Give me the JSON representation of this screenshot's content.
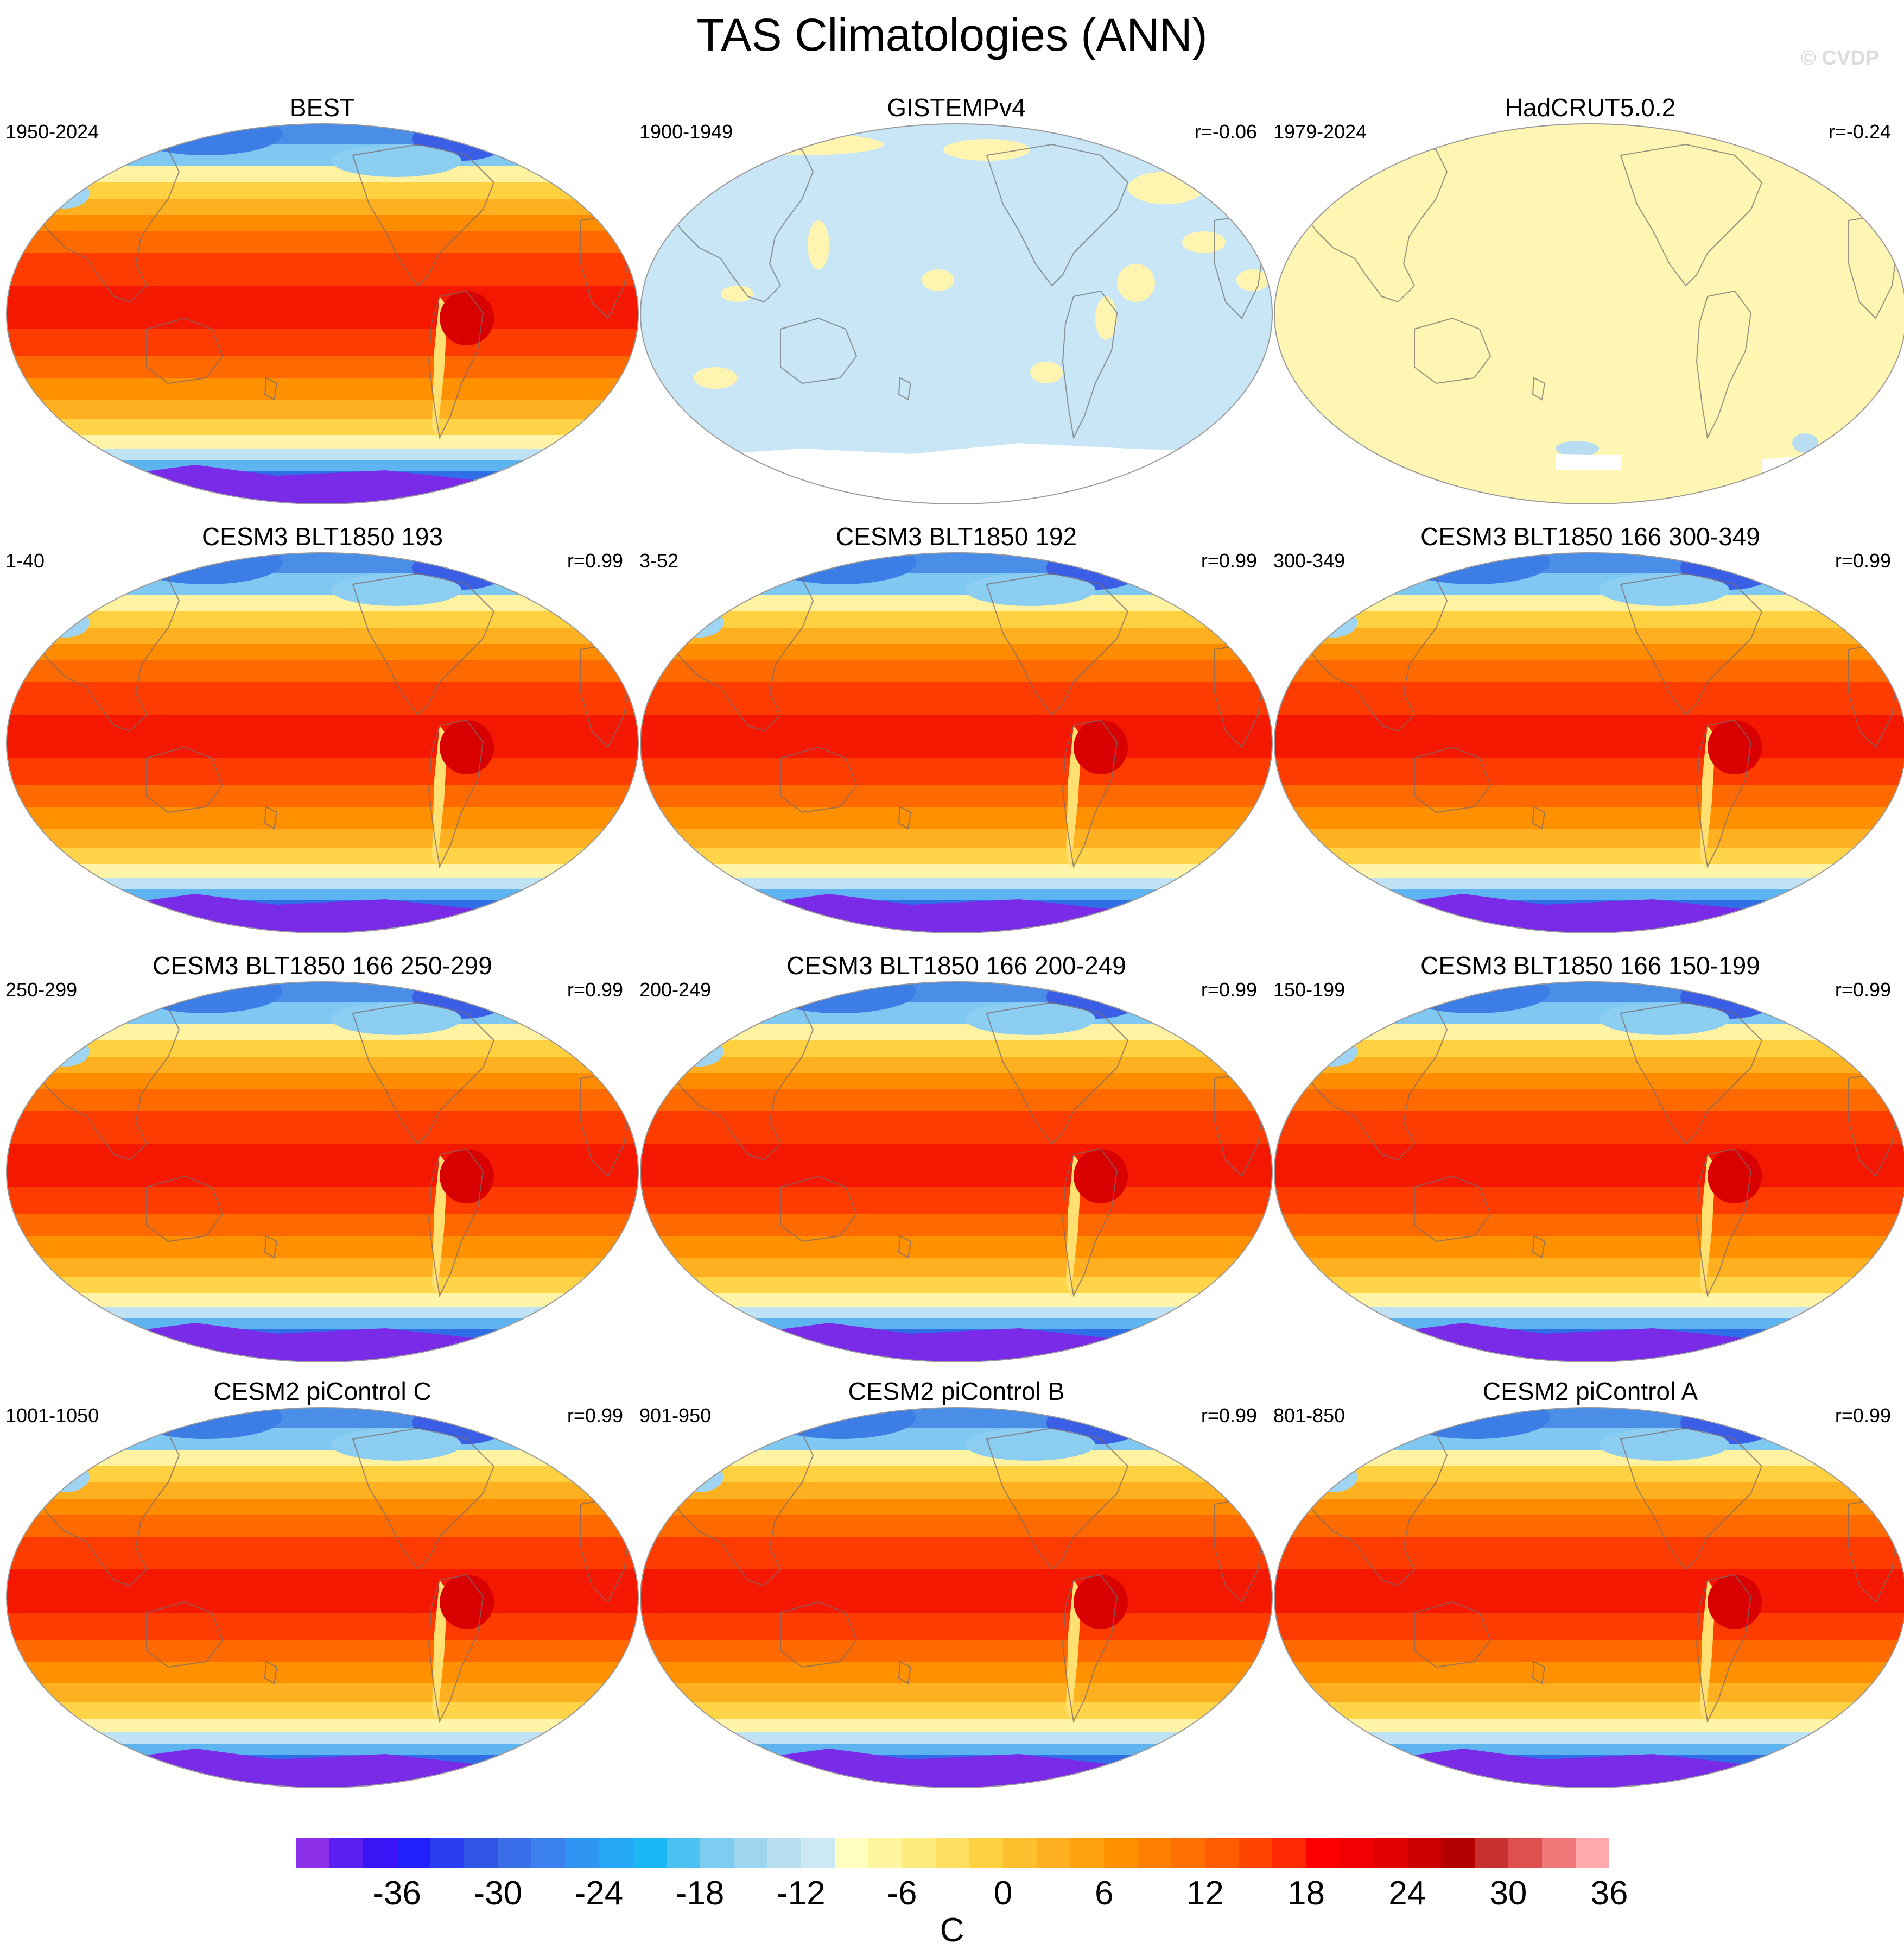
{
  "title": "TAS Climatologies (ANN)",
  "watermark": "© CVDP",
  "panels": [
    {
      "title": "BEST",
      "period": "1950-2024",
      "corr": "",
      "style": "full"
    },
    {
      "title": "GISTEMPv4",
      "period": "1900-1949",
      "corr": "r=-0.06",
      "style": "gistemp"
    },
    {
      "title": "HadCRUT5.0.2",
      "period": "1979-2024",
      "corr": "r=-0.24",
      "style": "hadcrut"
    },
    {
      "title": "CESM3 BLT1850 193",
      "period": "1-40",
      "corr": "r=0.99",
      "style": "full"
    },
    {
      "title": "CESM3 BLT1850 192",
      "period": "3-52",
      "corr": "r=0.99",
      "style": "full"
    },
    {
      "title": "CESM3 BLT1850 166 300-349",
      "period": "300-349",
      "corr": "r=0.99",
      "style": "full"
    },
    {
      "title": "CESM3 BLT1850 166 250-299",
      "period": "250-299",
      "corr": "r=0.99",
      "style": "full"
    },
    {
      "title": "CESM3 BLT1850 166 200-249",
      "period": "200-249",
      "corr": "r=0.99",
      "style": "full"
    },
    {
      "title": "CESM3 BLT1850 166 150-199",
      "period": "150-199",
      "corr": "r=0.99",
      "style": "full"
    },
    {
      "title": "CESM2 piControl C",
      "period": "1001-1050",
      "corr": "r=0.99",
      "style": "full"
    },
    {
      "title": "CESM2 piControl B",
      "period": "901-950",
      "corr": "r=0.99",
      "style": "full"
    },
    {
      "title": "CESM2 piControl A",
      "period": "801-850",
      "corr": "r=0.99",
      "style": "full"
    }
  ],
  "colorbar": {
    "colors": [
      "#8b2fe8",
      "#5b1ef0",
      "#3a14f5",
      "#2020ff",
      "#2a3ef0",
      "#3355e6",
      "#3a6de8",
      "#3b82ee",
      "#2f95f2",
      "#24a8f5",
      "#1cb8f5",
      "#4cc2f2",
      "#7ccdf0",
      "#9ed6ef",
      "#b7e0f0",
      "#cce8f5",
      "#ffffc0",
      "#fff5a0",
      "#ffec80",
      "#ffe060",
      "#ffd040",
      "#ffc030",
      "#ffb020",
      "#ffa010",
      "#ff9000",
      "#ff8000",
      "#ff7000",
      "#ff5c00",
      "#ff4400",
      "#ff2800",
      "#ff0000",
      "#f00000",
      "#e00000",
      "#cc0000",
      "#b40000",
      "#c83030",
      "#de5050",
      "#f07878",
      "#ffaaaa"
    ],
    "labels": [
      "-36",
      "-30",
      "-24",
      "-18",
      "-12",
      "-6",
      "0",
      "6",
      "12",
      "18",
      "24",
      "30",
      "36"
    ],
    "units": "C"
  }
}
